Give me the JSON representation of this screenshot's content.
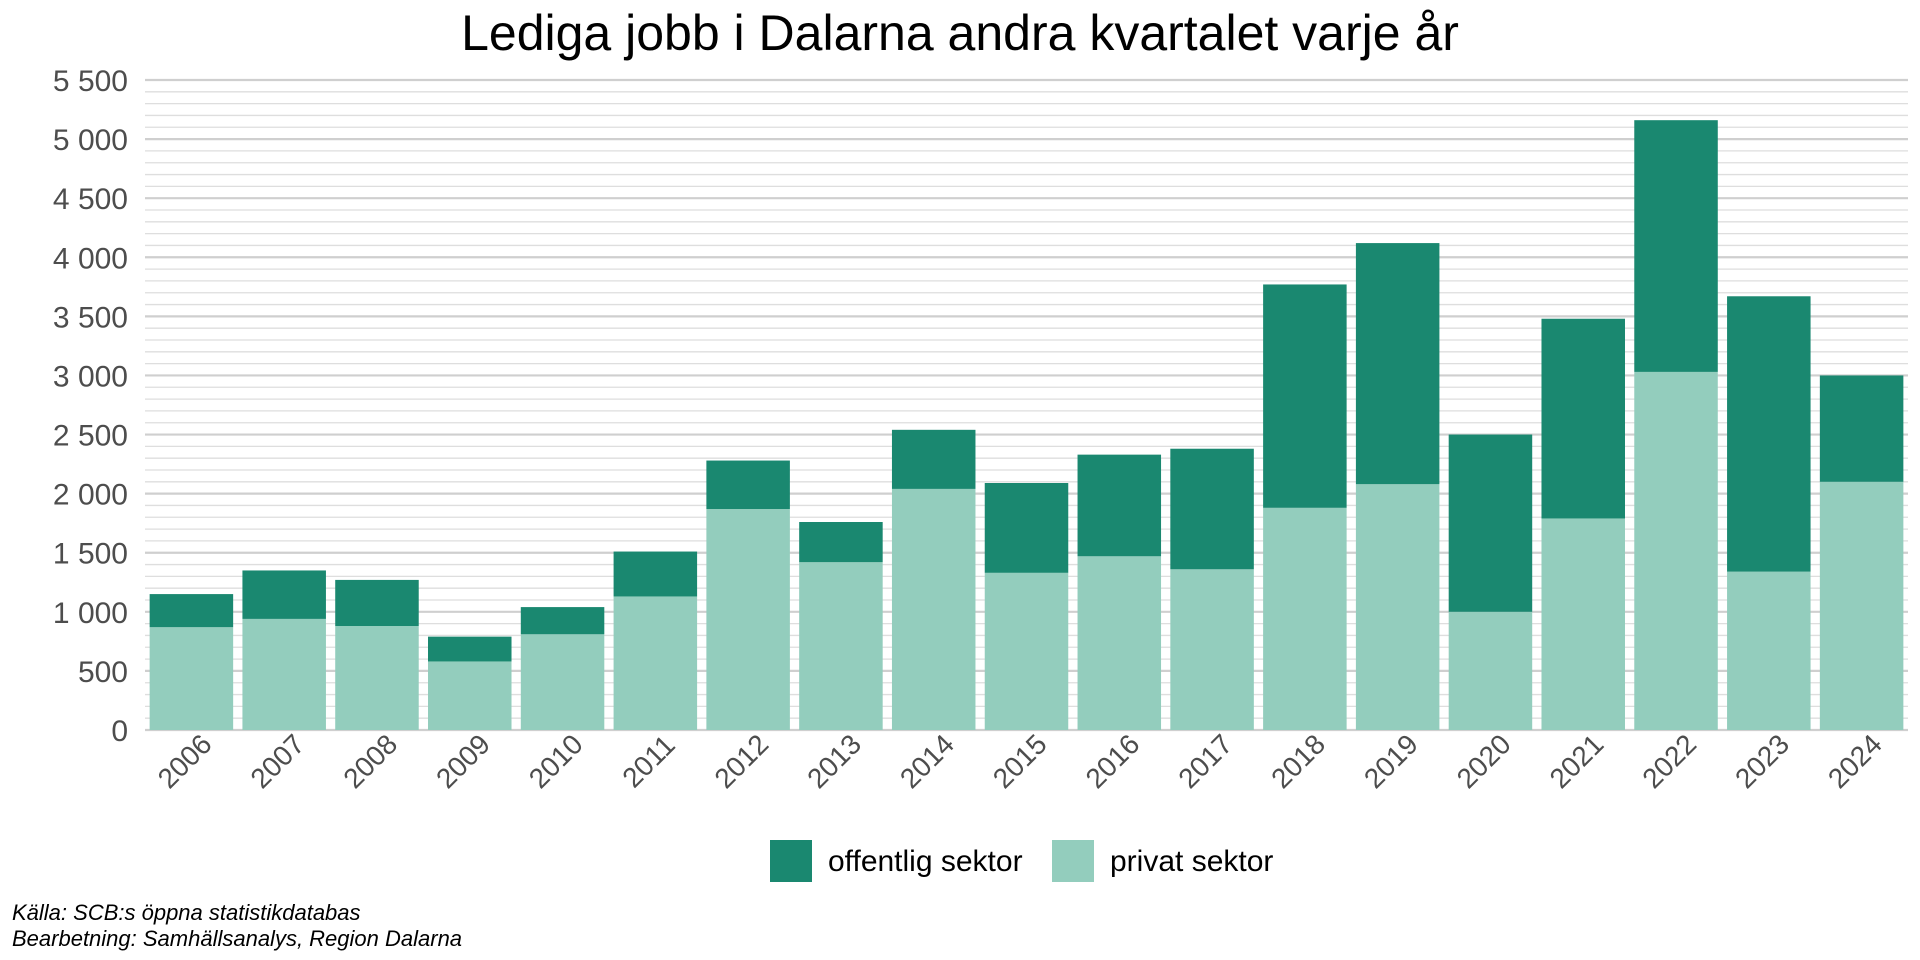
{
  "chart_data": {
    "type": "bar",
    "stacked": true,
    "title": "Lediga jobb i Dalarna andra kvartalet varje år",
    "xlabel": "",
    "ylabel": "",
    "ylim": [
      0,
      5500
    ],
    "y_ticks": [
      0,
      500,
      1000,
      1500,
      2000,
      2500,
      3000,
      3500,
      4000,
      4500,
      5000,
      5500
    ],
    "y_tick_labels": [
      "0",
      "500",
      "1 000",
      "1 500",
      "2 000",
      "2 500",
      "3 000",
      "3 500",
      "4 000",
      "4 500",
      "5 000",
      "5 500"
    ],
    "grid": true,
    "legend_position": "bottom",
    "categories": [
      "2006",
      "2007",
      "2008",
      "2009",
      "2010",
      "2011",
      "2012",
      "2013",
      "2014",
      "2015",
      "2016",
      "2017",
      "2018",
      "2019",
      "2020",
      "2021",
      "2022",
      "2023",
      "2024"
    ],
    "series": [
      {
        "name": "privat sektor",
        "color": "#93cdbd",
        "values": [
          870,
          940,
          880,
          580,
          810,
          1130,
          1870,
          1420,
          2040,
          1330,
          1470,
          1360,
          1880,
          2080,
          1000,
          1790,
          3030,
          1340,
          2100
        ]
      },
      {
        "name": "offentlig sektor",
        "color": "#1a8870",
        "values": [
          280,
          410,
          390,
          210,
          230,
          380,
          410,
          340,
          500,
          760,
          860,
          1020,
          1890,
          2040,
          1500,
          1690,
          2130,
          2330,
          900
        ]
      }
    ],
    "legend": [
      {
        "name": "offentlig sektor",
        "color": "#1a8870"
      },
      {
        "name": "privat sektor",
        "color": "#93cdbd"
      }
    ]
  },
  "source": {
    "line1": "Källa: SCB:s öppna statistikdatabas",
    "line2": "Bearbetning: Samhällsanalys, Region Dalarna"
  }
}
